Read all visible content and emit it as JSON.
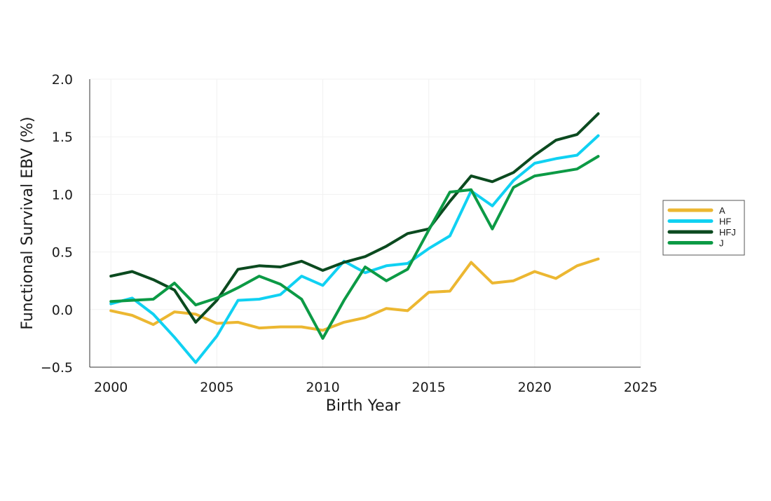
{
  "chart_data": {
    "type": "line",
    "title": "",
    "xlabel": "Birth Year",
    "ylabel": "Functional Survival EBV (%)",
    "xlim": [
      1999,
      2025
    ],
    "ylim": [
      -0.5,
      2.0
    ],
    "x_ticks": [
      2000,
      2005,
      2010,
      2015,
      2020,
      2025
    ],
    "y_ticks": [
      -0.5,
      0.0,
      0.5,
      1.0,
      1.5,
      2.0
    ],
    "y_tick_labels": [
      "−0.5",
      "0.0",
      "0.5",
      "1.0",
      "1.5",
      "2.0"
    ],
    "grid": true,
    "legend_position": "right",
    "x": [
      2000,
      2001,
      2002,
      2003,
      2004,
      2005,
      2006,
      2007,
      2008,
      2009,
      2010,
      2011,
      2012,
      2013,
      2014,
      2015,
      2016,
      2017,
      2018,
      2019,
      2020,
      2021,
      2022,
      2023
    ],
    "series": [
      {
        "name": "A",
        "color": "#ecb731",
        "values": [
          -0.01,
          -0.05,
          -0.13,
          -0.02,
          -0.04,
          -0.12,
          -0.11,
          -0.16,
          -0.15,
          -0.15,
          -0.18,
          -0.11,
          -0.07,
          0.01,
          -0.01,
          0.15,
          0.16,
          0.41,
          0.23,
          0.25,
          0.33,
          0.27,
          0.38,
          0.44
        ]
      },
      {
        "name": "HF",
        "color": "#10d1f2",
        "values": [
          0.05,
          0.1,
          -0.04,
          -0.24,
          -0.46,
          -0.23,
          0.08,
          0.09,
          0.13,
          0.29,
          0.21,
          0.42,
          0.32,
          0.38,
          0.4,
          0.53,
          0.64,
          1.03,
          0.9,
          1.12,
          1.27,
          1.31,
          1.34,
          1.51
        ]
      },
      {
        "name": "HFJ",
        "color": "#0b4a1f",
        "values": [
          0.29,
          0.33,
          0.26,
          0.17,
          -0.11,
          0.08,
          0.35,
          0.38,
          0.37,
          0.42,
          0.34,
          0.41,
          0.46,
          0.55,
          0.66,
          0.7,
          0.94,
          1.16,
          1.11,
          1.19,
          1.34,
          1.47,
          1.52,
          1.7
        ]
      },
      {
        "name": "J",
        "color": "#0c9a45",
        "values": [
          0.07,
          0.08,
          0.09,
          0.23,
          0.04,
          0.1,
          0.19,
          0.29,
          0.22,
          0.09,
          -0.25,
          0.08,
          0.37,
          0.25,
          0.35,
          0.69,
          1.02,
          1.04,
          0.7,
          1.06,
          1.16,
          1.19,
          1.22,
          1.33
        ]
      }
    ]
  }
}
